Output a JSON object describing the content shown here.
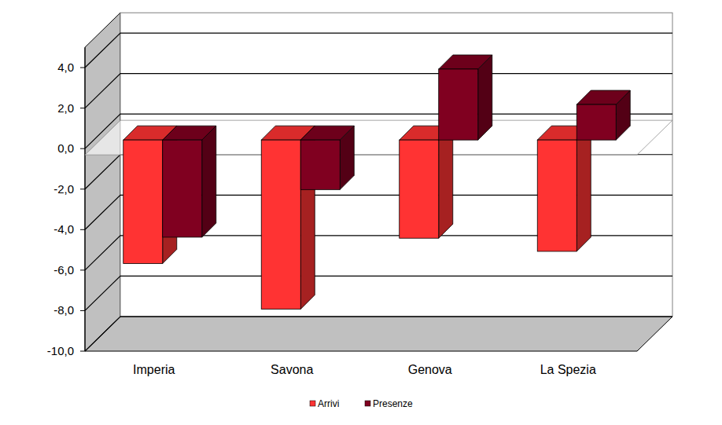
{
  "chart_data": {
    "type": "bar",
    "categories": [
      "Imperia",
      "Savona",
      "Genova",
      "La Spezia"
    ],
    "series": [
      {
        "name": "Arrivi",
        "color": "#ff3333",
        "values": [
          -6.1,
          -8.35,
          -4.85,
          -5.5
        ]
      },
      {
        "name": "Presenze",
        "color": "#800020",
        "values": [
          -4.8,
          -2.45,
          3.5,
          1.75
        ]
      }
    ],
    "ylim": [
      -10,
      5
    ],
    "yticks": [
      {
        "value": -10,
        "label": "-10,0"
      },
      {
        "value": -8,
        "label": "-8,0"
      },
      {
        "value": -6,
        "label": "-6,0"
      },
      {
        "value": -4,
        "label": "-4,0"
      },
      {
        "value": -2,
        "label": "-2,0"
      },
      {
        "value": 0,
        "label": "0,0"
      },
      {
        "value": 2,
        "label": "2,0"
      },
      {
        "value": 4,
        "label": "4,0"
      }
    ],
    "grid": true,
    "legend": "bottom"
  }
}
